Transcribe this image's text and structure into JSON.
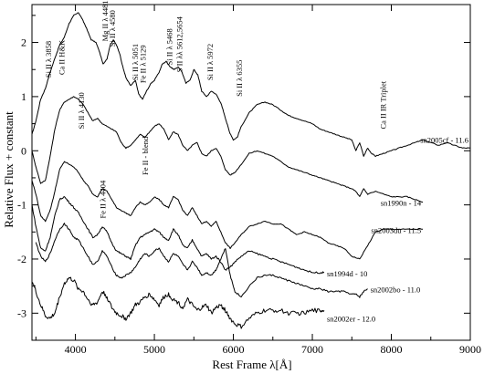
{
  "chart_data": {
    "type": "line",
    "xlabel": "Rest Frame λ[Å]",
    "ylabel": "Relative Flux + constant",
    "xlim": [
      3450,
      9000
    ],
    "ylim": [
      -3.5,
      2.7
    ],
    "xticks": [
      4000,
      5000,
      6000,
      7000,
      8000,
      9000
    ],
    "yticks": [
      2,
      1,
      0,
      -1,
      -2,
      -3
    ],
    "grid": false,
    "series": [
      {
        "name": "sn2005cf - 11.6",
        "x": [
          3450,
          3500,
          3560,
          3620,
          3680,
          3750,
          3800,
          3860,
          3920,
          3980,
          4040,
          4080,
          4130,
          4200,
          4260,
          4300,
          4350,
          4400,
          4440,
          4480,
          4520,
          4560,
          4600,
          4640,
          4700,
          4760,
          4800,
          4850,
          4900,
          4960,
          5000,
          5060,
          5100,
          5150,
          5200,
          5250,
          5300,
          5350,
          5400,
          5450,
          5500,
          5550,
          5600,
          5660,
          5720,
          5780,
          5850,
          5900,
          5950,
          6000,
          6050,
          6100,
          6200,
          6300,
          6400,
          6500,
          6600,
          6700,
          6800,
          6900,
          7000,
          7100,
          7200,
          7300,
          7400,
          7500,
          7550,
          7600,
          7650,
          7700,
          7750,
          7800,
          7900,
          8000,
          8100,
          8200,
          8300,
          8400,
          8500,
          8600,
          8700,
          8800,
          8900,
          9000
        ],
        "y": [
          0.3,
          0.55,
          0.95,
          1.15,
          1.45,
          1.75,
          1.95,
          2.1,
          2.35,
          2.5,
          2.55,
          2.45,
          2.3,
          2.05,
          2.0,
          1.85,
          1.6,
          1.7,
          1.95,
          2.05,
          1.95,
          1.8,
          1.55,
          1.35,
          1.2,
          1.3,
          1.05,
          0.95,
          1.1,
          1.25,
          1.3,
          1.45,
          1.6,
          1.65,
          1.55,
          1.5,
          1.55,
          1.45,
          1.25,
          1.3,
          1.5,
          1.4,
          1.1,
          1.0,
          1.1,
          1.05,
          0.85,
          0.6,
          0.35,
          0.2,
          0.25,
          0.45,
          0.7,
          0.85,
          0.9,
          0.85,
          0.75,
          0.65,
          0.6,
          0.55,
          0.5,
          0.4,
          0.35,
          0.3,
          0.25,
          0.2,
          0.0,
          0.15,
          -0.1,
          0.05,
          -0.05,
          -0.1,
          -0.05,
          0.0,
          0.05,
          0.1,
          0.15,
          0.2,
          0.15,
          0.1,
          0.15,
          0.1,
          0.05,
          0.05
        ]
      },
      {
        "name": "sn1990n - 14",
        "x": [
          3450,
          3500,
          3560,
          3620,
          3680,
          3740,
          3800,
          3860,
          3920,
          3980,
          4040,
          4100,
          4160,
          4220,
          4280,
          4340,
          4400,
          4460,
          4520,
          4580,
          4640,
          4700,
          4760,
          4820,
          4880,
          4940,
          5000,
          5060,
          5120,
          5180,
          5240,
          5300,
          5360,
          5420,
          5480,
          5540,
          5600,
          5660,
          5720,
          5780,
          5840,
          5900,
          5960,
          6020,
          6100,
          6200,
          6300,
          6400,
          6500,
          6600,
          6700,
          6800,
          6900,
          7000,
          7100,
          7200,
          7300,
          7400,
          7500,
          7550,
          7600,
          7650,
          7700,
          7800,
          7900,
          8000,
          8100,
          8200,
          8300,
          8400
        ],
        "y": [
          0.0,
          -0.3,
          -0.6,
          -0.55,
          -0.1,
          0.4,
          0.75,
          0.9,
          0.95,
          1.0,
          0.95,
          0.85,
          0.7,
          0.55,
          0.6,
          0.5,
          0.45,
          0.4,
          0.35,
          0.15,
          0.05,
          0.1,
          0.2,
          0.3,
          0.25,
          0.35,
          0.45,
          0.5,
          0.4,
          0.2,
          0.35,
          0.3,
          0.1,
          0.0,
          0.1,
          0.15,
          -0.05,
          -0.1,
          0.0,
          0.05,
          -0.1,
          -0.35,
          -0.45,
          -0.4,
          -0.25,
          -0.05,
          0.0,
          -0.05,
          -0.1,
          -0.2,
          -0.3,
          -0.35,
          -0.4,
          -0.45,
          -0.5,
          -0.55,
          -0.6,
          -0.65,
          -0.7,
          -0.75,
          -0.85,
          -0.7,
          -0.8,
          -0.75,
          -0.8,
          -0.85,
          -0.85,
          -0.85,
          -0.9,
          -0.95
        ]
      },
      {
        "name": "sn2003du - 11.5",
        "x": [
          3450,
          3500,
          3560,
          3620,
          3680,
          3740,
          3800,
          3860,
          3920,
          3980,
          4040,
          4100,
          4160,
          4220,
          4280,
          4340,
          4400,
          4460,
          4520,
          4580,
          4640,
          4700,
          4760,
          4820,
          4880,
          4940,
          5000,
          5060,
          5120,
          5180,
          5240,
          5300,
          5360,
          5420,
          5480,
          5540,
          5600,
          5660,
          5720,
          5780,
          5840,
          5900,
          5960,
          6020,
          6100,
          6200,
          6300,
          6400,
          6500,
          6600,
          6700,
          6800,
          6900,
          7000,
          7100,
          7200,
          7300,
          7400,
          7500,
          7600,
          7700,
          7800,
          7900,
          8000,
          8100,
          8200,
          8300,
          8400
        ],
        "y": [
          -0.55,
          -0.8,
          -1.2,
          -1.3,
          -1.1,
          -0.75,
          -0.35,
          -0.2,
          -0.25,
          -0.3,
          -0.4,
          -0.55,
          -0.65,
          -0.8,
          -0.85,
          -0.7,
          -0.75,
          -0.9,
          -1.05,
          -1.1,
          -1.15,
          -1.2,
          -1.05,
          -0.95,
          -1.0,
          -0.95,
          -0.85,
          -0.9,
          -1.0,
          -1.05,
          -0.85,
          -0.9,
          -1.1,
          -1.2,
          -1.05,
          -1.2,
          -1.35,
          -1.3,
          -1.4,
          -1.3,
          -1.5,
          -1.7,
          -1.8,
          -1.7,
          -1.55,
          -1.4,
          -1.35,
          -1.3,
          -1.35,
          -1.35,
          -1.45,
          -1.55,
          -1.5,
          -1.55,
          -1.6,
          -1.7,
          -1.75,
          -1.8,
          -1.95,
          -2.0,
          -1.75,
          -1.5,
          -1.45,
          -1.45,
          -1.45,
          -1.45,
          -1.45,
          -1.45
        ]
      },
      {
        "name": "sn1994d - 10",
        "x": [
          3450,
          3500,
          3560,
          3620,
          3680,
          3740,
          3800,
          3860,
          3920,
          3980,
          4040,
          4100,
          4160,
          4220,
          4280,
          4340,
          4400,
          4460,
          4520,
          4580,
          4640,
          4700,
          4760,
          4820,
          4880,
          4940,
          5000,
          5060,
          5120,
          5180,
          5240,
          5300,
          5360,
          5420,
          5480,
          5540,
          5600,
          5660,
          5720,
          5780,
          5840,
          5900,
          5960,
          6020,
          6100,
          6200,
          6300,
          6400,
          6500,
          6600,
          6700,
          6800,
          6900,
          7000,
          7100,
          7150
        ],
        "y": [
          -1.0,
          -1.4,
          -1.8,
          -1.85,
          -1.6,
          -1.2,
          -0.9,
          -0.85,
          -0.95,
          -1.05,
          -1.15,
          -1.3,
          -1.45,
          -1.6,
          -1.55,
          -1.4,
          -1.5,
          -1.7,
          -1.85,
          -1.9,
          -1.95,
          -2.0,
          -1.75,
          -1.6,
          -1.55,
          -1.5,
          -1.45,
          -1.5,
          -1.6,
          -1.65,
          -1.45,
          -1.55,
          -1.75,
          -1.8,
          -1.65,
          -1.8,
          -1.95,
          -1.9,
          -2.0,
          -1.95,
          -2.05,
          -2.2,
          -2.15,
          -2.05,
          -1.95,
          -1.85,
          -1.9,
          -1.95,
          -2.0,
          -2.05,
          -2.1,
          -2.15,
          -2.2,
          -2.25,
          -2.25,
          -2.25
        ]
      },
      {
        "name": "sn2002bo - 11.0",
        "x": [
          3500,
          3560,
          3620,
          3680,
          3740,
          3800,
          3860,
          3920,
          3980,
          4040,
          4100,
          4160,
          4220,
          4280,
          4340,
          4400,
          4460,
          4520,
          4580,
          4640,
          4700,
          4760,
          4820,
          4880,
          4940,
          5000,
          5060,
          5120,
          5180,
          5240,
          5300,
          5360,
          5420,
          5480,
          5540,
          5600,
          5660,
          5720,
          5780,
          5840,
          5900,
          5960,
          6020,
          6100,
          6200,
          6300,
          6400,
          6500,
          6600,
          6700,
          6800,
          6900,
          7000,
          7100,
          7200,
          7300,
          7400,
          7500,
          7550,
          7600,
          7650,
          7700
        ],
        "y": [
          -1.7,
          -1.95,
          -2.05,
          -1.9,
          -1.65,
          -1.45,
          -1.35,
          -1.45,
          -1.6,
          -1.65,
          -1.8,
          -1.95,
          -2.1,
          -2.05,
          -1.85,
          -1.95,
          -2.15,
          -2.3,
          -2.35,
          -2.3,
          -2.25,
          -2.15,
          -2.0,
          -1.9,
          -1.95,
          -1.85,
          -1.8,
          -1.95,
          -2.05,
          -1.9,
          -1.95,
          -2.1,
          -2.2,
          -2.05,
          -2.15,
          -2.3,
          -2.25,
          -2.3,
          -2.2,
          -2.0,
          -1.8,
          -2.3,
          -2.6,
          -2.7,
          -2.5,
          -2.35,
          -2.3,
          -2.3,
          -2.35,
          -2.4,
          -2.45,
          -2.5,
          -2.55,
          -2.55,
          -2.6,
          -2.6,
          -2.6,
          -2.65,
          -2.65,
          -2.7,
          -2.6,
          -2.55
        ]
      },
      {
        "name": "sn2002er - 12.0",
        "x": [
          3450,
          3500,
          3560,
          3620,
          3680,
          3740,
          3800,
          3860,
          3920,
          3980,
          4040,
          4100,
          4160,
          4220,
          4280,
          4340,
          4400,
          4460,
          4520,
          4580,
          4640,
          4700,
          4760,
          4820,
          4880,
          4940,
          5000,
          5060,
          5120,
          5180,
          5240,
          5300,
          5360,
          5420,
          5480,
          5540,
          5600,
          5660,
          5720,
          5780,
          5840,
          5900,
          5960,
          6020,
          6100,
          6200,
          6300,
          6400,
          6500,
          6600,
          6700,
          6800,
          6900,
          7000,
          7100,
          7150
        ],
        "y": [
          -2.4,
          -2.6,
          -2.85,
          -3.05,
          -3.1,
          -3.0,
          -2.7,
          -2.45,
          -2.35,
          -2.4,
          -2.55,
          -2.6,
          -2.75,
          -2.85,
          -2.8,
          -2.6,
          -2.7,
          -2.9,
          -3.0,
          -3.05,
          -3.1,
          -3.0,
          -2.85,
          -2.8,
          -2.7,
          -2.65,
          -2.75,
          -2.85,
          -2.7,
          -2.65,
          -2.75,
          -2.8,
          -2.9,
          -2.75,
          -2.85,
          -2.95,
          -2.9,
          -2.85,
          -3.0,
          -2.9,
          -2.85,
          -2.95,
          -3.1,
          -3.2,
          -3.25,
          -3.1,
          -3.0,
          -2.95,
          -2.95,
          -2.95,
          -3.0,
          -3.0,
          -3.0,
          -2.95,
          -2.95,
          -2.95
        ]
      }
    ],
    "annotations": [
      {
        "text": "Si II λ 3858",
        "x": 3690,
        "y": 1.35
      },
      {
        "text": "Ca II H&K",
        "x": 3860,
        "y": 1.4
      },
      {
        "text": "Si II λ 4130",
        "x": 4110,
        "y": 0.4
      },
      {
        "text": "Mg II λ 4481",
        "x": 4410,
        "y": 2.02
      },
      {
        "text": "Si II λ 4580",
        "x": 4500,
        "y": 1.92
      },
      {
        "text": "Si II λ 5051",
        "x": 4790,
        "y": 1.3
      },
      {
        "text": "Fe II λ 5129",
        "x": 4890,
        "y": 1.25
      },
      {
        "text": "Si II λ 5468",
        "x": 5225,
        "y": 1.58
      },
      {
        "text": "S II λλ 5612,5654",
        "x": 5350,
        "y": 1.45
      },
      {
        "text": "Si II λ 5972",
        "x": 5740,
        "y": 1.3
      },
      {
        "text": "Si II λ 6355",
        "x": 6110,
        "y": 1.0
      },
      {
        "text": "Ca II IR Triplet",
        "x": 7930,
        "y": 0.4
      },
      {
        "text": "Fe II - blend",
        "x": 4920,
        "y": -0.45
      },
      {
        "text": "Fe II λ 4404",
        "x": 4380,
        "y": -1.25
      }
    ]
  }
}
